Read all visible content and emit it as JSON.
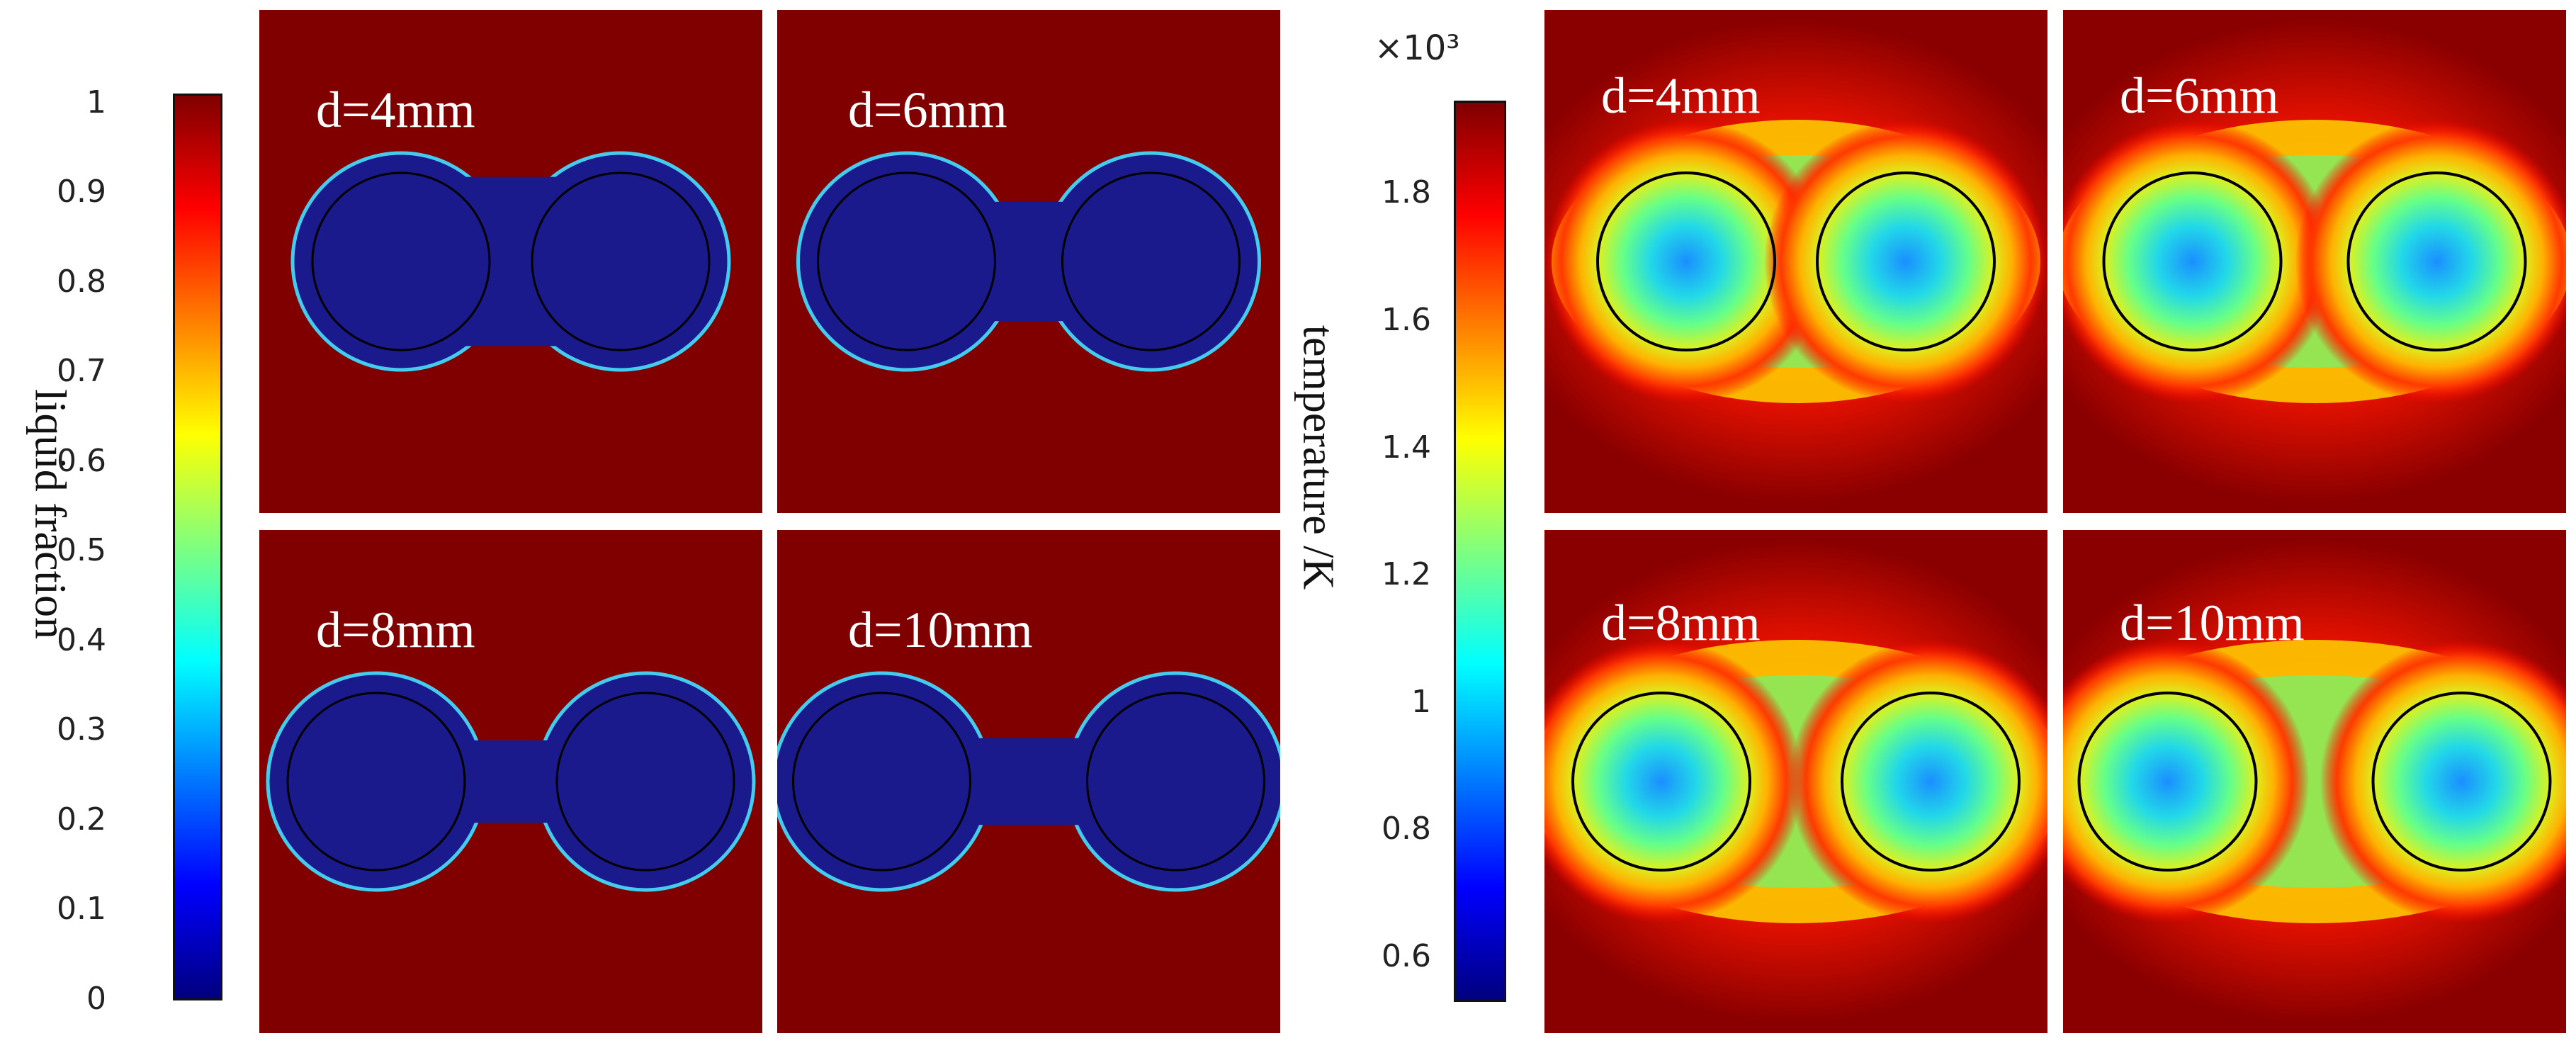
{
  "chart_data": [
    {
      "type": "heatmap",
      "colorbar": {
        "label": "liquid fraction",
        "range": [
          0,
          1
        ],
        "ticks": [
          "1",
          "0.9",
          "0.8",
          "0.7",
          "0.6",
          "0.5",
          "0.4",
          "0.3",
          "0.2",
          "0.1",
          "0"
        ],
        "tick_values": [
          1,
          0.9,
          0.8,
          0.7,
          0.6,
          0.5,
          0.4,
          0.3,
          0.2,
          0.1,
          0
        ],
        "colormap": "jet"
      },
      "panels": [
        {
          "label": "d=4mm",
          "d": 4
        },
        {
          "label": "d=6mm",
          "d": 6
        },
        {
          "label": "d=8mm",
          "d": 8
        },
        {
          "label": "d=10mm",
          "d": 10
        }
      ]
    },
    {
      "type": "heatmap",
      "colorbar": {
        "label": "temperature /K",
        "multiplier": "×10³",
        "range": [
          0.55,
          1.87
        ],
        "ticks": [
          "1.8",
          "1.6",
          "1.4",
          "1.2",
          "1",
          "0.8",
          "0.6"
        ],
        "tick_values": [
          1.8,
          1.6,
          1.4,
          1.2,
          1.0,
          0.8,
          0.6
        ],
        "colormap": "jet"
      },
      "panels": [
        {
          "label": "d=4mm",
          "d": 4
        },
        {
          "label": "d=6mm",
          "d": 6
        },
        {
          "label": "d=8mm",
          "d": 8
        },
        {
          "label": "d=10mm",
          "d": 10
        }
      ]
    }
  ],
  "colors": {
    "jet": [
      "#00007f",
      "#0000ff",
      "#007fff",
      "#00ffff",
      "#7fff7f",
      "#ffff00",
      "#ff7f00",
      "#ff0000",
      "#7f0000"
    ],
    "background_red": "#800000",
    "pool_blue": "#1a1a8c"
  }
}
